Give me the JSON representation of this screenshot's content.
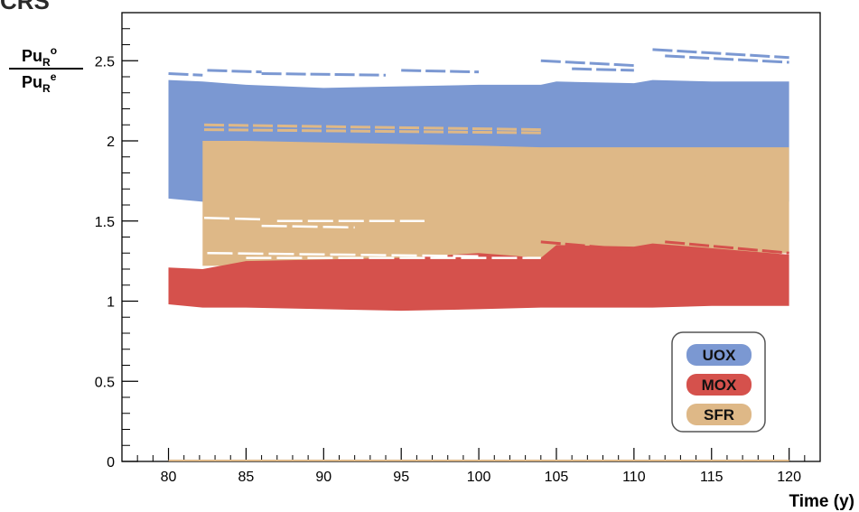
{
  "header_fragment": "CRS",
  "colors": {
    "uox": "#7b98d2",
    "mox": "#d5514c",
    "sfr": "#deb887",
    "axis": "#000000",
    "legend_border": "#555555"
  },
  "chart_data": {
    "type": "area",
    "title": "",
    "ylabel": {
      "numerator": {
        "base": "Pu",
        "sub": "R",
        "sup": "o"
      },
      "denominator": {
        "base": "Pu",
        "sub": "R",
        "sup": "e"
      }
    },
    "xlabel": "Time (y)",
    "xlim": [
      77,
      122
    ],
    "ylim": [
      0,
      2.8
    ],
    "x_ticks": [
      80,
      85,
      90,
      95,
      100,
      105,
      110,
      115,
      120
    ],
    "x_tick_labels": [
      "80",
      "85",
      "90",
      "95",
      "100",
      "105",
      "110",
      "115",
      "120"
    ],
    "y_ticks": [
      0,
      0.5,
      1,
      1.5,
      2,
      2.5
    ],
    "y_tick_labels": [
      "0",
      "0.5",
      "1",
      "1.5",
      "2",
      "2.5"
    ],
    "grid": false,
    "legend_position": "bottom-right",
    "series": [
      {
        "name": "UOX",
        "color_key": "uox",
        "x": [
          80,
          82.2,
          85,
          90,
          95,
          100,
          104,
          105,
          110,
          111.2,
          115,
          120
        ],
        "upper": [
          2.38,
          2.37,
          2.35,
          2.33,
          2.34,
          2.35,
          2.35,
          2.37,
          2.36,
          2.38,
          2.37,
          2.37
        ],
        "lower": [
          1.64,
          1.62,
          1.62,
          1.6,
          1.6,
          1.6,
          1.6,
          1.62,
          1.62,
          1.62,
          1.62,
          1.62
        ]
      },
      {
        "name": "SFR",
        "color_key": "sfr",
        "x": [
          82.2,
          85,
          90,
          95,
          100,
          104,
          105,
          110,
          115,
          120
        ],
        "upper": [
          2.0,
          2.0,
          1.99,
          1.98,
          1.97,
          1.96,
          1.96,
          1.96,
          1.96,
          1.96
        ],
        "lower": [
          1.22,
          1.22,
          1.22,
          1.22,
          1.22,
          1.23,
          1.25,
          1.28,
          1.28,
          1.3
        ]
      },
      {
        "name": "MOX",
        "color_key": "mox",
        "x": [
          80,
          82.2,
          85,
          90,
          95,
          100,
          104,
          105,
          110,
          111.2,
          115,
          120
        ],
        "upper": [
          1.21,
          1.2,
          1.25,
          1.26,
          1.27,
          1.3,
          1.27,
          1.35,
          1.34,
          1.36,
          1.33,
          1.29
        ],
        "lower": [
          0.98,
          0.96,
          0.96,
          0.95,
          0.94,
          0.95,
          0.96,
          0.96,
          0.96,
          0.96,
          0.97,
          0.97
        ]
      }
    ],
    "legend": [
      "UOX",
      "MOX",
      "SFR"
    ]
  }
}
